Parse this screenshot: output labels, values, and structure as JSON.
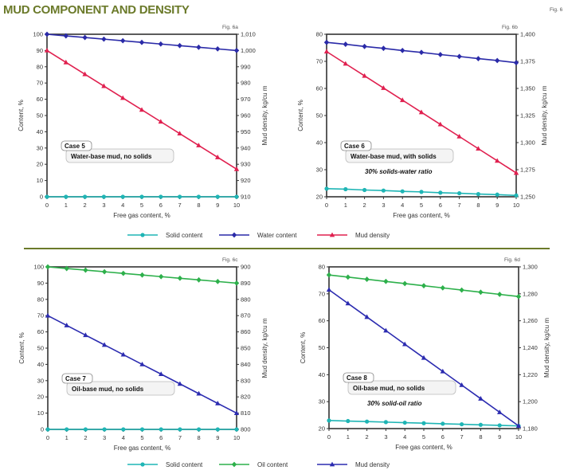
{
  "title": "MUD COMPONENT AND DENSITY",
  "figure_label": "Fig. 6",
  "colors": {
    "title": "#6b7a2a",
    "separator": "#6b7a2a",
    "solid": "#1fb5b5",
    "water": "#2a2aa8",
    "density_red": "#e0204f",
    "oil": "#2db04b",
    "density_blue": "#2b2bb0"
  },
  "legends": [
    {
      "items": [
        {
          "label": "Solid content",
          "color": "#1fb5b5",
          "marker": "circle"
        },
        {
          "label": "Water content",
          "color": "#2a2aa8",
          "marker": "diamond"
        },
        {
          "label": "Mud density",
          "color": "#e0204f",
          "marker": "triangle"
        }
      ]
    },
    {
      "items": [
        {
          "label": "Solid content",
          "color": "#1fb5b5",
          "marker": "circle"
        },
        {
          "label": "Oil content",
          "color": "#2db04b",
          "marker": "diamond"
        },
        {
          "label": "Mud density",
          "color": "#2b2bb0",
          "marker": "triangle"
        }
      ]
    }
  ],
  "chart_data": [
    {
      "type": "line",
      "fig": "Fig. 6a",
      "case": "Case 5",
      "case_text": "Water-base mud, no solids",
      "ratio_text": "",
      "xlabel": "Free gas content, %",
      "ylabel": "Content, %",
      "y2label": "Mud density, kg/cu m",
      "xlim": [
        0,
        10
      ],
      "ylim": [
        0,
        100
      ],
      "y2lim": [
        910,
        1010
      ],
      "grid": false,
      "x": [
        0,
        1,
        2,
        3,
        4,
        5,
        6,
        7,
        8,
        9,
        10
      ],
      "yticks": [
        "0",
        "10",
        "20",
        "30",
        "40",
        "50",
        "60",
        "70",
        "80",
        "90",
        "100"
      ],
      "y2ticks": [
        "910",
        "920",
        "930",
        "940",
        "950",
        "960",
        "970",
        "980",
        "990",
        "1,000",
        "1,010"
      ],
      "series": [
        {
          "name": "Solid content",
          "axis": "left",
          "color": "#1fb5b5",
          "marker": "circle",
          "values": [
            0,
            0,
            0,
            0,
            0,
            0,
            0,
            0,
            0,
            0,
            0
          ]
        },
        {
          "name": "Water content",
          "axis": "left",
          "color": "#2a2aa8",
          "marker": "diamond",
          "values": [
            100,
            99,
            98,
            97,
            96,
            95,
            94,
            93,
            92,
            91,
            90
          ]
        },
        {
          "name": "Mud density",
          "axis": "right",
          "color": "#e0204f",
          "marker": "triangle",
          "values": [
            1000,
            992.7,
            985.4,
            978.1,
            970.8,
            963.5,
            956.2,
            948.9,
            941.6,
            934.3,
            927
          ]
        }
      ]
    },
    {
      "type": "line",
      "fig": "Fig. 6b",
      "case": "Case 6",
      "case_text": "Water-base mud, with solids",
      "ratio_text": "30% solids-water ratio",
      "xlabel": "Free gas content, %",
      "ylabel": "Content, %",
      "y2label": "Mud density, kg/cu m",
      "xlim": [
        0,
        10
      ],
      "ylim": [
        20,
        80
      ],
      "y2lim": [
        1250,
        1400
      ],
      "grid": false,
      "x": [
        0,
        1,
        2,
        3,
        4,
        5,
        6,
        7,
        8,
        9,
        10
      ],
      "yticks": [
        "20",
        "30",
        "40",
        "50",
        "60",
        "70",
        "80"
      ],
      "y2ticks": [
        "1,250",
        "1,275",
        "1,300",
        "1,325",
        "1,350",
        "1,375",
        "1,400"
      ],
      "series": [
        {
          "name": "Solid content",
          "axis": "left",
          "color": "#1fb5b5",
          "marker": "circle",
          "values": [
            23,
            22.8,
            22.5,
            22.3,
            22,
            21.8,
            21.5,
            21.3,
            21,
            20.8,
            20.5
          ]
        },
        {
          "name": "Water content",
          "axis": "left",
          "color": "#2a2aa8",
          "marker": "diamond",
          "values": [
            77,
            76.3,
            75.5,
            74.8,
            74,
            73.3,
            72.5,
            71.8,
            71,
            70.3,
            69.5
          ]
        },
        {
          "name": "Mud density",
          "axis": "right",
          "color": "#e0204f",
          "marker": "triangle",
          "values": [
            1384,
            1372.8,
            1361.6,
            1350.4,
            1339.2,
            1328,
            1316.8,
            1305.6,
            1294.4,
            1283.2,
            1272
          ]
        }
      ]
    },
    {
      "type": "line",
      "fig": "Fig. 6c",
      "case": "Case 7",
      "case_text": "Oil-base mud, no solids",
      "ratio_text": "",
      "xlabel": "Free gas content, %",
      "ylabel": "Content, %",
      "y2label": "Mud density, kg/cu m",
      "xlim": [
        0,
        10
      ],
      "ylim": [
        0,
        100
      ],
      "y2lim": [
        800,
        900
      ],
      "grid": false,
      "x": [
        0,
        1,
        2,
        3,
        4,
        5,
        6,
        7,
        8,
        9,
        10
      ],
      "yticks": [
        "0",
        "10",
        "20",
        "30",
        "40",
        "50",
        "60",
        "70",
        "80",
        "90",
        "100"
      ],
      "y2ticks": [
        "800",
        "810",
        "820",
        "830",
        "840",
        "850",
        "860",
        "870",
        "880",
        "890",
        "900"
      ],
      "series": [
        {
          "name": "Solid content",
          "axis": "left",
          "color": "#1fb5b5",
          "marker": "circle",
          "values": [
            0,
            0,
            0,
            0,
            0,
            0,
            0,
            0,
            0,
            0,
            0
          ]
        },
        {
          "name": "Oil content",
          "axis": "left",
          "color": "#2db04b",
          "marker": "diamond",
          "values": [
            100,
            99,
            98,
            97,
            96,
            95,
            94,
            93,
            92,
            91,
            90
          ]
        },
        {
          "name": "Mud density",
          "axis": "right",
          "color": "#2b2bb0",
          "marker": "triangle",
          "values": [
            870,
            864,
            858,
            852,
            846,
            840,
            834,
            828,
            822,
            816,
            810
          ]
        }
      ]
    },
    {
      "type": "line",
      "fig": "Fig. 6d",
      "case": "Case 8",
      "case_text": "Oil-base mud, no solids",
      "ratio_text": "30% solid-oil ratio",
      "xlabel": "Free gas content, %",
      "ylabel": "Content, %",
      "y2label": "Mud density, kg/cu m",
      "xlim": [
        0,
        10
      ],
      "ylim": [
        20,
        80
      ],
      "y2lim": [
        1180,
        1300
      ],
      "grid": false,
      "x": [
        0,
        1,
        2,
        3,
        4,
        5,
        6,
        7,
        8,
        9,
        10
      ],
      "yticks": [
        "20",
        "30",
        "40",
        "50",
        "60",
        "70",
        "80"
      ],
      "y2ticks": [
        "1,180",
        "1,200",
        "1,220",
        "1,240",
        "1,260",
        "1,280",
        "1,300"
      ],
      "series": [
        {
          "name": "Solid content",
          "axis": "left",
          "color": "#1fb5b5",
          "marker": "circle",
          "values": [
            23,
            22.8,
            22.6,
            22.4,
            22.2,
            22,
            21.8,
            21.6,
            21.4,
            21.2,
            21
          ]
        },
        {
          "name": "Oil content",
          "axis": "left",
          "color": "#2db04b",
          "marker": "diamond",
          "values": [
            77,
            76.2,
            75.4,
            74.6,
            73.8,
            73,
            72.2,
            71.4,
            70.6,
            69.8,
            69
          ]
        },
        {
          "name": "Mud density",
          "axis": "right",
          "color": "#2b2bb0",
          "marker": "triangle",
          "values": [
            1283,
            1272.9,
            1262.8,
            1252.7,
            1242.6,
            1232.5,
            1222.4,
            1212.3,
            1202.2,
            1192.1,
            1182
          ]
        }
      ]
    }
  ]
}
